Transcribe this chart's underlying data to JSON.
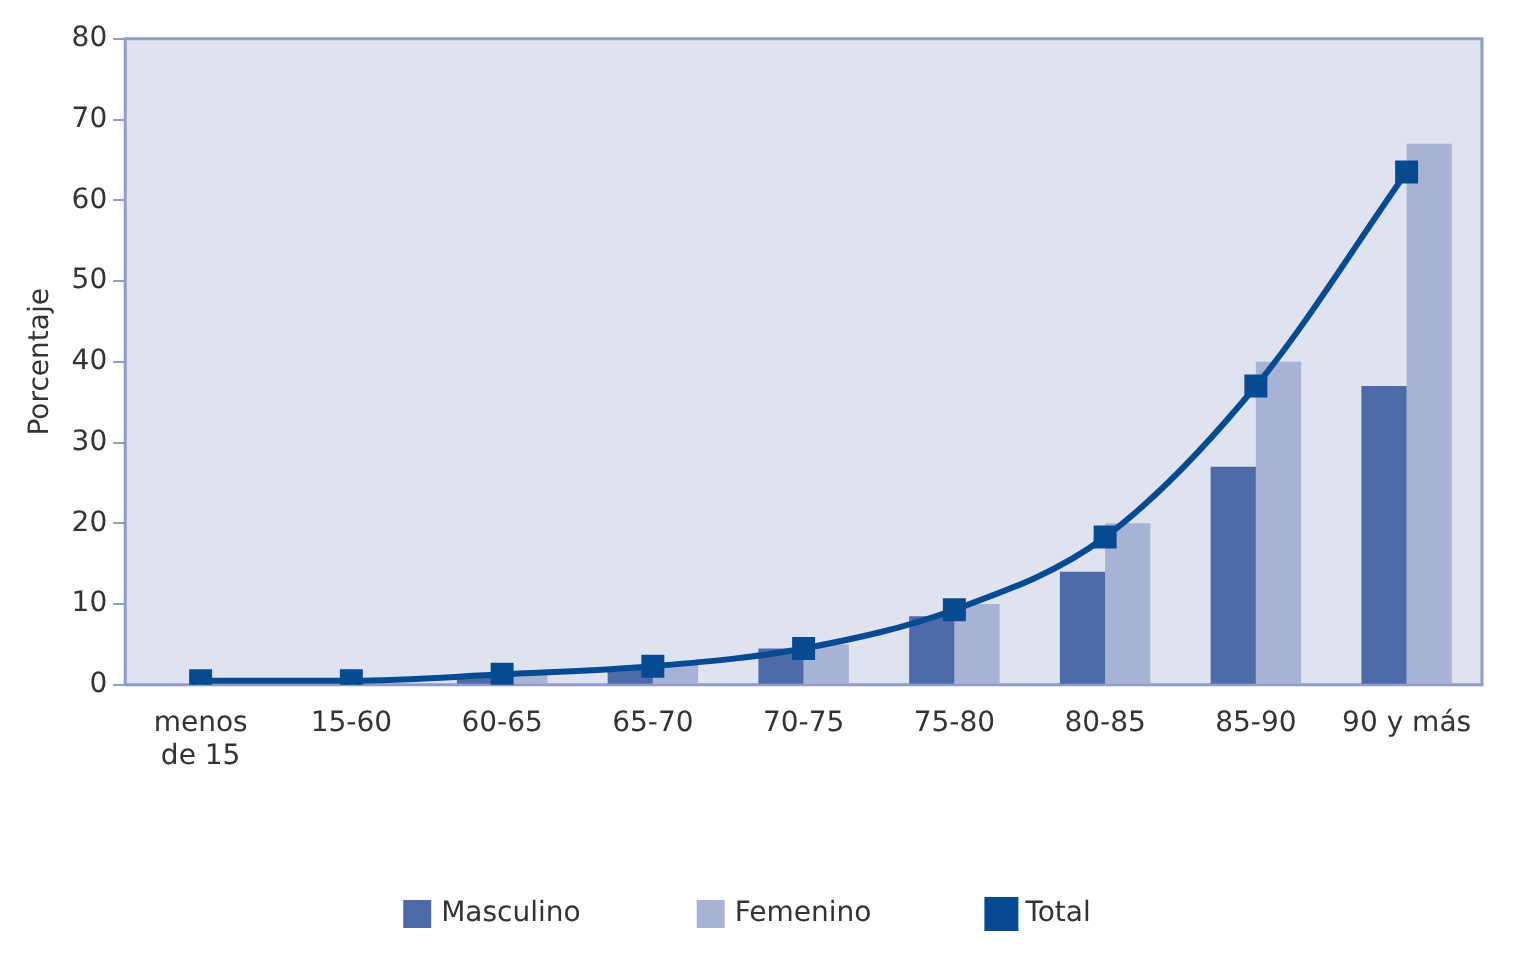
{
  "chart_data": {
    "type": "bar",
    "ylabel": "Porcentaje",
    "categories": [
      "menos de 15",
      "15-60",
      "60-65",
      "65-70",
      "70-75",
      "75-80",
      "80-85",
      "85-90",
      "90 y más"
    ],
    "series": [
      {
        "name": "Masculino",
        "color": "#4d6ba8",
        "values": [
          null,
          null,
          1,
          2,
          4.5,
          8.5,
          14,
          27,
          37
        ]
      },
      {
        "name": "Femenino",
        "color": "#a6b3d5",
        "values": [
          null,
          null,
          1.2,
          2.5,
          5,
          10,
          20,
          40,
          67
        ]
      },
      {
        "name": "Total",
        "type": "line",
        "color": "#064b92",
        "values": [
          0.5,
          0.5,
          1.3,
          2.3,
          4.5,
          9.3,
          18.3,
          37,
          63.5
        ]
      }
    ],
    "ylim": [
      0,
      80
    ],
    "yticks": [
      0,
      10,
      20,
      30,
      40,
      50,
      60,
      70,
      80
    ],
    "grid": false,
    "legend": "bottom",
    "marker": "square"
  }
}
